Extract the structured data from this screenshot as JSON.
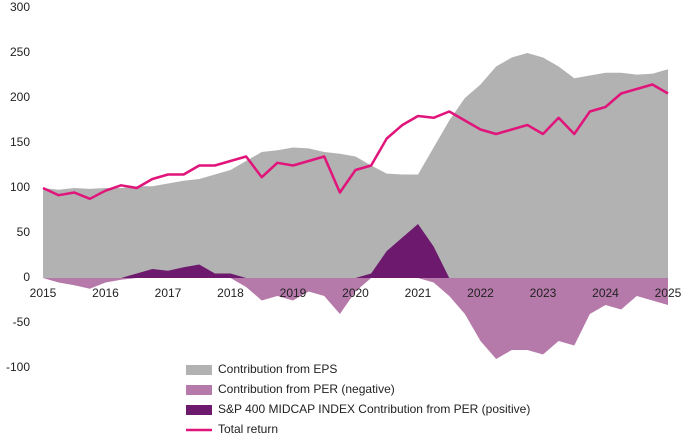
{
  "chart_data": {
    "type": "area",
    "x": [
      2015,
      2015.25,
      2015.5,
      2015.75,
      2016,
      2016.25,
      2016.5,
      2016.75,
      2017,
      2017.25,
      2017.5,
      2017.75,
      2018,
      2018.25,
      2018.5,
      2018.75,
      2019,
      2019.25,
      2019.5,
      2019.75,
      2020,
      2020.25,
      2020.5,
      2020.75,
      2021,
      2021.25,
      2021.5,
      2021.75,
      2022,
      2022.25,
      2022.5,
      2022.75,
      2023,
      2023.25,
      2023.5,
      2023.75,
      2024,
      2024.25,
      2024.5,
      2024.75,
      2025
    ],
    "series": [
      {
        "name": "Contribution from EPS",
        "type": "area",
        "color": "#b2b2b2",
        "values": [
          100,
          98,
          100,
          99,
          100,
          100,
          102,
          102,
          105,
          108,
          110,
          115,
          120,
          130,
          140,
          142,
          145,
          144,
          140,
          138,
          135,
          125,
          116,
          115,
          115,
          145,
          175,
          200,
          215,
          235,
          245,
          250,
          245,
          235,
          222,
          225,
          228,
          228,
          226,
          227,
          232
        ]
      },
      {
        "name": "Contribution from PER (negative)",
        "type": "area",
        "color": "#b57aaa",
        "values": [
          0,
          -5,
          -8,
          -12,
          -5,
          -2,
          0,
          0,
          0,
          0,
          0,
          0,
          0,
          -10,
          -25,
          -20,
          -25,
          -15,
          -20,
          -40,
          -15,
          0,
          0,
          0,
          0,
          -5,
          -20,
          -40,
          -70,
          -90,
          -80,
          -80,
          -85,
          -70,
          -75,
          -40,
          -30,
          -35,
          -20,
          -25,
          -30
        ]
      },
      {
        "name": "S&P 400 MIDCAP INDEX   Contribution from PER (positive)",
        "type": "area",
        "color": "#6d1a6e",
        "values": [
          0,
          0,
          0,
          0,
          0,
          0,
          5,
          10,
          8,
          12,
          15,
          5,
          5,
          0,
          0,
          0,
          0,
          0,
          0,
          0,
          0,
          5,
          30,
          45,
          60,
          35,
          0,
          0,
          0,
          0,
          0,
          0,
          0,
          0,
          0,
          0,
          0,
          0,
          0,
          0,
          0
        ]
      },
      {
        "name": "Total return",
        "type": "line",
        "color": "#e0147a",
        "values": [
          100,
          92,
          95,
          88,
          97,
          103,
          100,
          110,
          115,
          115,
          125,
          125,
          130,
          135,
          112,
          128,
          125,
          130,
          135,
          95,
          120,
          125,
          155,
          170,
          180,
          178,
          185,
          175,
          165,
          160,
          165,
          170,
          160,
          178,
          160,
          185,
          190,
          205,
          210,
          215,
          205
        ]
      }
    ],
    "xlim": [
      2015,
      2025
    ],
    "xticks": [
      2015,
      2016,
      2017,
      2018,
      2019,
      2020,
      2021,
      2022,
      2023,
      2024,
      2025
    ],
    "ylim": [
      -100,
      300
    ],
    "yticks": [
      -100,
      -50,
      0,
      50,
      100,
      150,
      200,
      250,
      300
    ]
  }
}
